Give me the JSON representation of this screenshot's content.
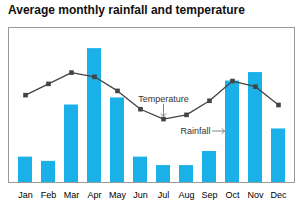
{
  "chart_data": {
    "type": "bar",
    "title": "Average monthly rainfall and temperature",
    "categories": [
      "Jan",
      "Feb",
      "Mar",
      "Apr",
      "May",
      "Jun",
      "Jul",
      "Aug",
      "Sep",
      "Oct",
      "Nov",
      "Dec"
    ],
    "series": [
      {
        "name": "Rainfall",
        "type": "bar",
        "color": "#1ab0e8",
        "values": [
          18,
          15,
          55,
          95,
          60,
          18,
          12,
          12,
          22,
          72,
          78,
          38
        ]
      },
      {
        "name": "Temperature",
        "type": "line",
        "axis": "y2",
        "color": "#444444",
        "marker": "square",
        "values": [
          62,
          70,
          78,
          75,
          65,
          52,
          45,
          48,
          58,
          72,
          68,
          55
        ]
      }
    ],
    "ylim": [
      0,
      110
    ],
    "y2lim": [
      0,
      110
    ],
    "tick_labels": "x",
    "grid": false,
    "annotations": [
      {
        "text": "Temperature",
        "series": "Temperature",
        "category": "Jul"
      },
      {
        "text": "Rainfall",
        "series": "Rainfall",
        "category": "Oct"
      }
    ]
  }
}
